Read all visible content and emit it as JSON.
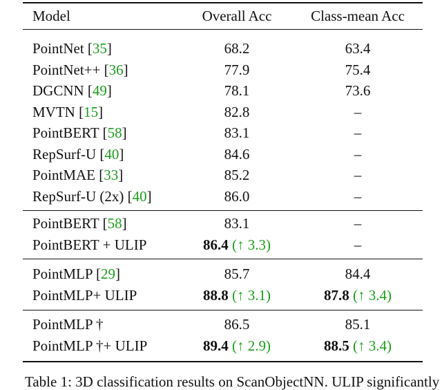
{
  "table": {
    "header": [
      "Model",
      "Overall Acc",
      "Class-mean Acc"
    ],
    "groups": [
      {
        "rows": [
          {
            "model": "PointNet",
            "ref": "[35]",
            "overall": {
              "value": "68.2"
            },
            "classmean": {
              "value": "63.4"
            }
          },
          {
            "model": "PointNet++",
            "ref": "[36]",
            "overall": {
              "value": "77.9"
            },
            "classmean": {
              "value": "75.4"
            }
          },
          {
            "model": "DGCNN",
            "ref": "[49]",
            "overall": {
              "value": "78.1"
            },
            "classmean": {
              "value": "73.6"
            }
          },
          {
            "model": "MVTN",
            "ref": "[15]",
            "overall": {
              "value": "82.8"
            },
            "classmean": {
              "value": "–"
            }
          },
          {
            "model": "PointBERT",
            "ref": "[58]",
            "overall": {
              "value": "83.1"
            },
            "classmean": {
              "value": "–"
            }
          },
          {
            "model": "RepSurf-U",
            "ref": "[40]",
            "overall": {
              "value": "84.6"
            },
            "classmean": {
              "value": "–"
            }
          },
          {
            "model": "PointMAE",
            "ref": "[33]",
            "overall": {
              "value": "85.2"
            },
            "classmean": {
              "value": "–"
            }
          },
          {
            "model": "RepSurf-U (2x)",
            "ref": "[40]",
            "overall": {
              "value": "86.0"
            },
            "classmean": {
              "value": "–"
            }
          }
        ]
      },
      {
        "rows": [
          {
            "model": "PointBERT",
            "ref": "[58]",
            "overall": {
              "value": "83.1"
            },
            "classmean": {
              "value": "–"
            }
          },
          {
            "model": "PointBERT + ULIP",
            "overall": {
              "value": "86.4",
              "bold": true,
              "gain": "(↑ 3.3)"
            },
            "classmean": {
              "value": "–"
            }
          }
        ]
      },
      {
        "rows": [
          {
            "model": "PointMLP",
            "ref": "[29]",
            "overall": {
              "value": "85.7"
            },
            "classmean": {
              "value": "84.4"
            }
          },
          {
            "model": "PointMLP+ ULIP",
            "overall": {
              "value": "88.8",
              "bold": true,
              "gain": "(↑ 3.1)"
            },
            "classmean": {
              "value": "87.8",
              "bold": true,
              "gain": "(↑ 3.4)"
            }
          }
        ]
      },
      {
        "rows": [
          {
            "model": "PointMLP †",
            "overall": {
              "value": "86.5"
            },
            "classmean": {
              "value": "85.1"
            }
          },
          {
            "model": "PointMLP †+ ULIP",
            "overall": {
              "value": "89.4",
              "bold": true,
              "gain": "(↑ 2.9)"
            },
            "classmean": {
              "value": "88.5",
              "bold": true,
              "gain": "(↑ 3.4)"
            }
          }
        ]
      }
    ],
    "caption": "Table 1: 3D classification results on ScanObjectNN. ULIP significantly"
  }
}
